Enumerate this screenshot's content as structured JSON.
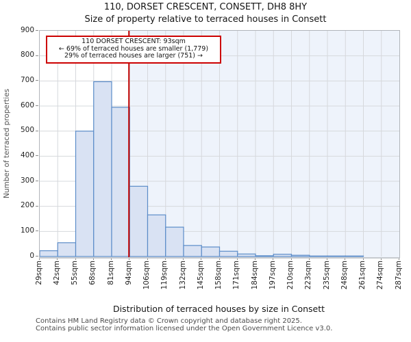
{
  "header": {
    "title": "110, DORSET CRESCENT, CONSETT, DH8 8HY",
    "subtitle": "Size of property relative to terraced houses in Consett"
  },
  "annotation": {
    "line1": "110 DORSET CRESCENT: 93sqm",
    "line2": "← 69% of terraced houses are smaller (1,779)",
    "line3": "29% of terraced houses are larger (751) →"
  },
  "chart_data": {
    "type": "bar",
    "title": "110, DORSET CRESCENT, CONSETT, DH8 8HY",
    "subtitle": "Size of property relative to terraced houses in Consett",
    "xlabel": "Distribution of terraced houses by size in Consett",
    "ylabel": "Number of terraced properties",
    "categories": [
      "29sqm",
      "42sqm",
      "55sqm",
      "68sqm",
      "81sqm",
      "94sqm",
      "106sqm",
      "119sqm",
      "132sqm",
      "145sqm",
      "158sqm",
      "171sqm",
      "184sqm",
      "197sqm",
      "210sqm",
      "223sqm",
      "235sqm",
      "248sqm",
      "261sqm",
      "274sqm",
      "287sqm"
    ],
    "values": [
      23,
      55,
      500,
      697,
      595,
      280,
      166,
      117,
      44,
      38,
      21,
      10,
      3,
      9,
      5,
      2,
      2,
      2,
      0,
      0
    ],
    "ylim": [
      0,
      900
    ],
    "yticks": [
      0,
      100,
      200,
      300,
      400,
      500,
      600,
      700,
      800,
      900
    ],
    "axis_range_sqm": [
      29,
      287
    ],
    "grid": true,
    "legend": "none",
    "marker_line": {
      "sqm": 93,
      "label": "93sqm"
    },
    "colors": {
      "bar_fill": "#d9e2f3",
      "bar_stroke": "#5b8cc8",
      "marker_line": "#c00000",
      "annotation_border": "#cc0000",
      "shaded_region": "#eef3fb",
      "gridline": "#d6d8dc"
    }
  },
  "footer": {
    "line1": "Contains HM Land Registry data © Crown copyright and database right 2025.",
    "line2": "Contains public sector information licensed under the Open Government Licence v3.0."
  }
}
